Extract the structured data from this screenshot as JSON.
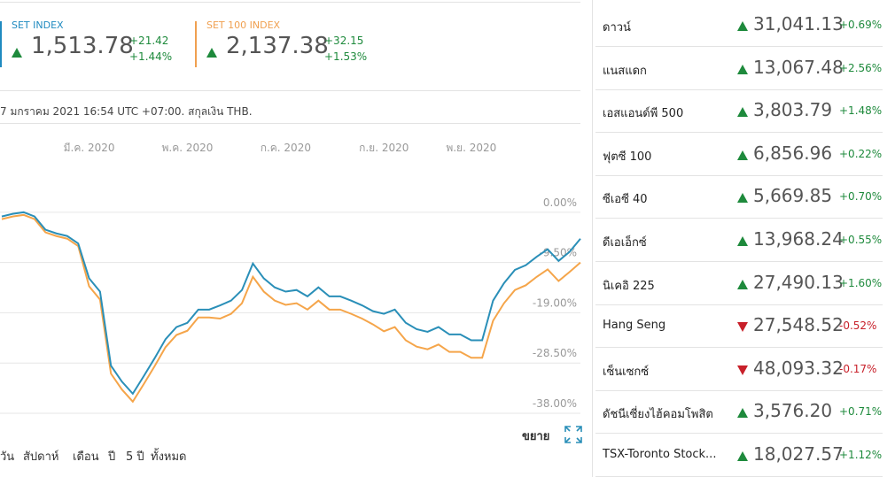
{
  "indices": [
    {
      "name": "SET INDEX",
      "color": "#1f8ac0",
      "value": "1,513.78",
      "change": "+21.42",
      "change_pct": "+1.44%"
    },
    {
      "name": "SET 100 INDEX",
      "color": "#f0a050",
      "value": "2,137.38",
      "change": "+32.15",
      "change_pct": "+1.53%"
    }
  ],
  "timestamp": "7 มกราคม 2021 16:54 UTC +07:00. สกุลเงิน THB.",
  "chart_data": {
    "type": "line",
    "categories": [
      null,
      null,
      null,
      null,
      null,
      null,
      null,
      null,
      "มี.ค. 2020",
      null,
      null,
      null,
      null,
      null,
      null,
      null,
      null,
      "พ.ค. 2020",
      null,
      null,
      null,
      null,
      null,
      null,
      null,
      null,
      "ก.ค. 2020",
      null,
      null,
      null,
      null,
      null,
      null,
      null,
      null,
      "ก.ย. 2020",
      null,
      null,
      null,
      null,
      null,
      null,
      null,
      "พ.ย. 2020",
      null,
      null,
      null,
      null,
      null,
      null,
      null,
      null,
      null,
      null
    ],
    "series": [
      {
        "name": "SET INDEX",
        "color": "#2a8fb8",
        "values": [
          -0.8,
          -0.3,
          0,
          -0.8,
          -3.3,
          -4.0,
          -4.5,
          -5.9,
          -12.5,
          -15.0,
          -29.0,
          -32.0,
          -34.3,
          -31.0,
          -27.6,
          -24.0,
          -21.7,
          -20.9,
          -18.4,
          -18.4,
          -17.6,
          -16.7,
          -14.7,
          -9.7,
          -12.5,
          -14.2,
          -15.0,
          -14.7,
          -15.9,
          -14.2,
          -15.9,
          -15.9,
          -16.7,
          -17.6,
          -18.7,
          -19.2,
          -18.4,
          -20.9,
          -22.1,
          -22.6,
          -21.7,
          -23.1,
          -23.1,
          -24.2,
          -24.2,
          -16.7,
          -13.4,
          -10.9,
          -10.0,
          -8.4,
          -7.0,
          -9.2,
          -7.5,
          -5.0
        ]
      },
      {
        "name": "SET 100 INDEX",
        "color": "#f5a54a",
        "values": [
          -1.3,
          -0.8,
          -0.5,
          -1.3,
          -3.8,
          -4.5,
          -5.0,
          -6.4,
          -14.0,
          -16.5,
          -30.5,
          -33.5,
          -35.8,
          -32.5,
          -29.1,
          -25.5,
          -23.2,
          -22.4,
          -19.9,
          -19.9,
          -20.1,
          -19.2,
          -17.2,
          -12.2,
          -15.0,
          -16.7,
          -17.5,
          -17.2,
          -18.4,
          -16.7,
          -18.4,
          -18.4,
          -19.2,
          -20.1,
          -21.2,
          -22.5,
          -21.7,
          -24.2,
          -25.4,
          -25.9,
          -25.0,
          -26.4,
          -26.4,
          -27.5,
          -27.5,
          -20.5,
          -17.2,
          -14.7,
          -13.8,
          -12.2,
          -10.8,
          -13.0,
          -11.3,
          -9.5
        ]
      }
    ],
    "ylim": [
      -38,
      7.5
    ],
    "yticks": [
      {
        "value": 0,
        "label": "0.00%"
      },
      {
        "value": -9.5,
        "label": "-9.50%"
      },
      {
        "value": -19,
        "label": "-19.00%"
      },
      {
        "value": -28.5,
        "label": "-28.50%"
      },
      {
        "value": -38,
        "label": "-38.00%"
      }
    ],
    "grid": true
  },
  "expand": "ขยาย",
  "ranges": [
    "วัน",
    "สัปดาห์",
    "เดือน",
    "ปี",
    "5 ปี",
    "ทั้งหมด"
  ],
  "markets": [
    {
      "name": "ดาวน์",
      "value": "31,041.13",
      "change": "+0.69%",
      "direction": "up"
    },
    {
      "name": "แนสแดก",
      "value": "13,067.48",
      "change": "+2.56%",
      "direction": "up"
    },
    {
      "name": "เอสแอนด์พี 500",
      "value": "3,803.79",
      "change": "+1.48%",
      "direction": "up"
    },
    {
      "name": "ฟุตซี 100",
      "value": "6,856.96",
      "change": "+0.22%",
      "direction": "up"
    },
    {
      "name": "ซีเอซี 40",
      "value": "5,669.85",
      "change": "+0.70%",
      "direction": "up"
    },
    {
      "name": "ดีเอเอ็กซ์",
      "value": "13,968.24",
      "change": "+0.55%",
      "direction": "up"
    },
    {
      "name": "นิเคอิ 225",
      "value": "27,490.13",
      "change": "+1.60%",
      "direction": "up"
    },
    {
      "name": "Hang Seng",
      "value": "27,548.52",
      "change": "-0.52%",
      "direction": "down"
    },
    {
      "name": "เซ็นเซกซ์",
      "value": "48,093.32",
      "change": "-0.17%",
      "direction": "down"
    },
    {
      "name": "ดัชนีเซี่ยงไฮ้คอมโพสิต",
      "value": "3,576.20",
      "change": "+0.71%",
      "direction": "up"
    },
    {
      "name": "TSX-Toronto Stock...",
      "value": "18,027.57",
      "change": "+1.12%",
      "direction": "up"
    }
  ]
}
